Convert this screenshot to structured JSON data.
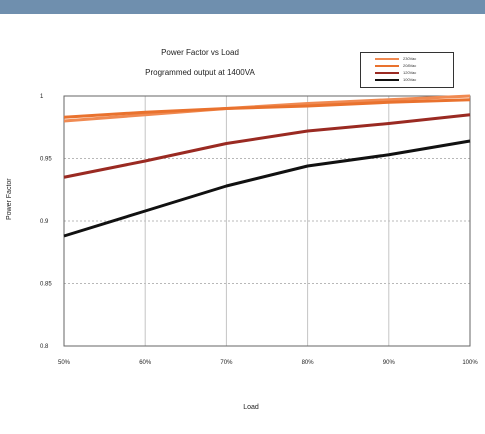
{
  "chart_data": {
    "type": "line",
    "title": "Power Factor vs Load",
    "subtitle": "Programmed output at 1400VA",
    "xlabel": "Load",
    "ylabel": "Power Factor",
    "categories": [
      "50%",
      "60%",
      "70%",
      "80%",
      "90%",
      "100%"
    ],
    "y_ticks": [
      "1",
      "0.95",
      "0.9",
      "0.85",
      "0.8"
    ],
    "ylim": [
      0.8,
      1.0
    ],
    "grid": true,
    "legend_position": "top-right",
    "series": [
      {
        "name": "230Vac",
        "color": "#f08a52",
        "values": [
          0.98,
          0.985,
          0.99,
          0.994,
          0.997,
          1.0
        ]
      },
      {
        "name": "208Vac",
        "color": "#e9722e",
        "values": [
          0.983,
          0.987,
          0.99,
          0.992,
          0.995,
          0.997
        ]
      },
      {
        "name": "120Vac",
        "color": "#9a2a22",
        "values": [
          0.935,
          0.948,
          0.962,
          0.972,
          0.978,
          0.985
        ]
      },
      {
        "name": "100Vac",
        "color": "#111111",
        "values": [
          0.888,
          0.908,
          0.928,
          0.944,
          0.953,
          0.964
        ]
      }
    ]
  }
}
